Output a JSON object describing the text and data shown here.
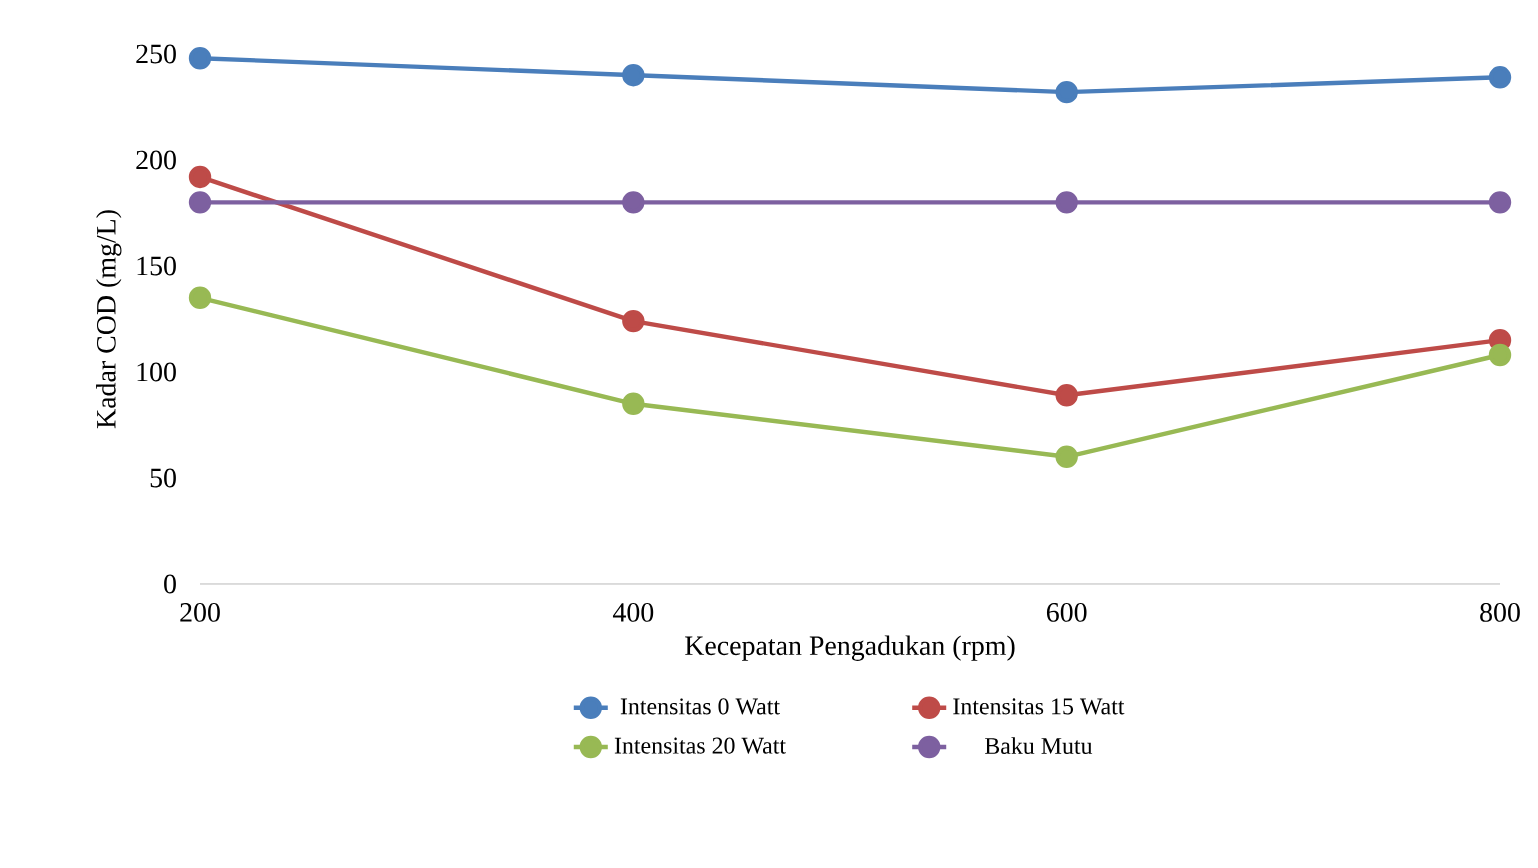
{
  "chart_data": {
    "type": "line",
    "xlabel": "Kecepatan Pengadukan (rpm)",
    "ylabel": "Kadar COD (mg/L)",
    "x": [
      200,
      400,
      600,
      800
    ],
    "series": [
      {
        "name": "Intensitas 0 Watt",
        "color": "#4a7ebb",
        "values": [
          248,
          240,
          232,
          239
        ]
      },
      {
        "name": "Intensitas 15 Watt",
        "color": "#be4b48",
        "values": [
          192,
          124,
          89,
          115
        ]
      },
      {
        "name": "Intensitas 20 Watt",
        "color": "#98b954",
        "values": [
          135,
          85,
          60,
          108
        ]
      },
      {
        "name": "Baku Mutu",
        "color": "#7d60a0",
        "values": [
          180,
          180,
          180,
          180
        ]
      }
    ],
    "xlim": [
      200,
      800
    ],
    "xticks": [
      200,
      400,
      600,
      800
    ],
    "ylim": [
      0,
      250
    ],
    "yticks": [
      0,
      50,
      100,
      150,
      200,
      250
    ],
    "legend": "bottom",
    "marker": "circle",
    "line_style": "solid"
  }
}
